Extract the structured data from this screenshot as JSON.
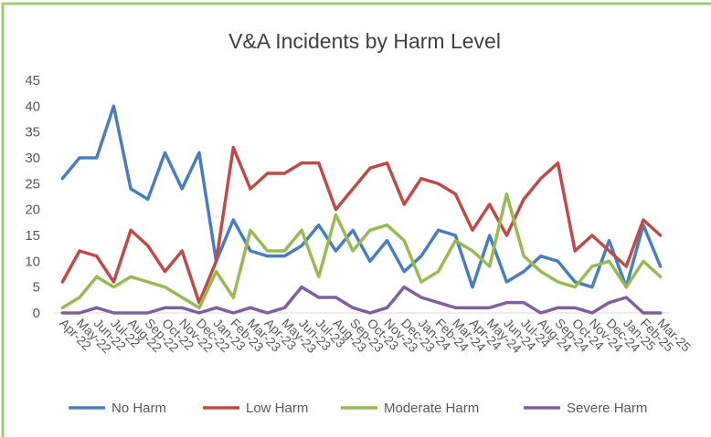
{
  "chart_data": {
    "type": "line",
    "title": "V&A Incidents by Harm Level",
    "categories": [
      "Apr-22",
      "May-22",
      "Jun-22",
      "Jul-22",
      "Aug-22",
      "Sep-22",
      "Oct-22",
      "Nov-22",
      "Dec-22",
      "Jan-23",
      "Feb-23",
      "Mar-23",
      "Apr-23",
      "May-23",
      "Jun-23",
      "Jul-23",
      "Aug-23",
      "Sep-23",
      "Oct-23",
      "Nov-23",
      "Dec-23",
      "Jan-24",
      "Feb-24",
      "Mar-24",
      "Apr-24",
      "May-24",
      "Jun-24",
      "Jul-24",
      "Aug-24",
      "Sep-24",
      "Oct-24",
      "Nov-24",
      "Dec-24",
      "Jan-25",
      "Feb-25",
      "Mar-25"
    ],
    "series": [
      {
        "name": "No Harm",
        "color": "#4a7ebb",
        "values": [
          26,
          30,
          30,
          40,
          24,
          22,
          31,
          24,
          31,
          10,
          18,
          12,
          11,
          11,
          13,
          17,
          12,
          16,
          10,
          14,
          8,
          11,
          16,
          15,
          5,
          15,
          6,
          8,
          11,
          10,
          6,
          5,
          14,
          5,
          17,
          9
        ]
      },
      {
        "name": "Low Harm",
        "color": "#be4b48",
        "values": [
          6,
          12,
          11,
          6,
          16,
          13,
          8,
          12,
          2,
          10,
          32,
          24,
          27,
          27,
          29,
          29,
          20,
          24,
          28,
          29,
          21,
          26,
          25,
          23,
          16,
          21,
          15,
          22,
          26,
          29,
          12,
          15,
          12,
          9,
          18,
          15
        ]
      },
      {
        "name": "Moderate Harm",
        "color": "#98b954",
        "values": [
          1,
          3,
          7,
          5,
          7,
          6,
          5,
          3,
          1,
          8,
          3,
          16,
          12,
          12,
          16,
          7,
          19,
          12,
          16,
          17,
          14,
          6,
          8,
          14,
          12,
          9,
          23,
          11,
          8,
          6,
          5,
          9,
          10,
          5,
          10,
          7
        ]
      },
      {
        "name": "Severe Harm",
        "color": "#7d60a0",
        "values": [
          0,
          0,
          1,
          0,
          0,
          0,
          1,
          1,
          0,
          1,
          0,
          1,
          0,
          1,
          5,
          3,
          3,
          1,
          0,
          1,
          5,
          3,
          2,
          1,
          1,
          1,
          2,
          2,
          0,
          1,
          1,
          0,
          2,
          3,
          0,
          0
        ]
      }
    ],
    "ylim": [
      0,
      45
    ],
    "yticks": [
      0,
      5,
      10,
      15,
      20,
      25,
      30,
      35,
      40,
      45
    ],
    "grid": false,
    "legend": "bottom"
  }
}
